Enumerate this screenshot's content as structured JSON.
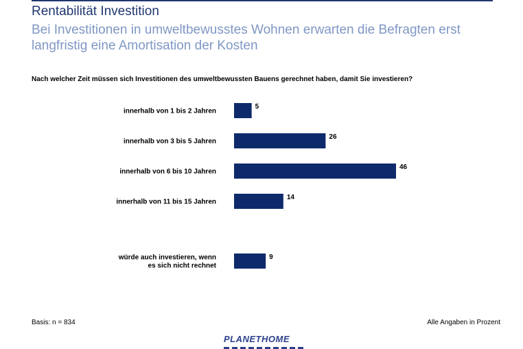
{
  "header": {
    "title": "Rentabilität Investition",
    "subtitle": "Bei Investitionen in umweltbewusstes Wohnen erwarten die Befragten erst langfristig eine Amortisation der Kosten"
  },
  "question": "Nach welcher Zeit müssen sich Investitionen des umweltbewussten Bauens gerechnet haben, damit Sie investieren?",
  "chart_data": {
    "type": "bar",
    "orientation": "horizontal",
    "categories": [
      [
        "innerhalb von 1 bis 2 Jahren"
      ],
      [
        "innerhalb von 3 bis 5 Jahren"
      ],
      [
        "innerhalb von 6 bis 10 Jahren"
      ],
      [
        "innerhalb von 11 bis 15 Jahren"
      ],
      [
        "würde auch investieren, wenn",
        "es sich nicht rechnet"
      ]
    ],
    "values": [
      5,
      26,
      46,
      14,
      9
    ],
    "bar_color": "#0f2a6b",
    "xlim": [
      0,
      46
    ],
    "grid": false
  },
  "footer": {
    "basis": "Basis: n = 834",
    "unit_note": "Alle Angaben in Prozent"
  },
  "logo": {
    "text": "PLANETHOME"
  }
}
